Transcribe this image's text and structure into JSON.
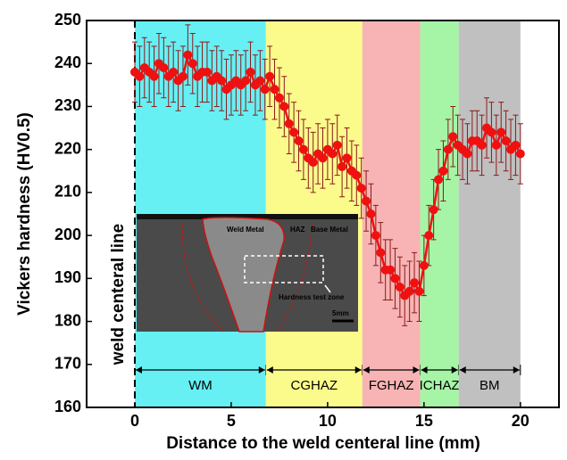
{
  "chart_data": {
    "type": "errorbar-line",
    "y_label": "Vickers hardness (HV0.5)",
    "x_label": "Distance to the weld centeral line (mm)",
    "xlim": [
      -2.5,
      22
    ],
    "xticks": [
      0,
      5,
      10,
      15,
      20
    ],
    "ylim": [
      160,
      250
    ],
    "yticks": [
      160,
      170,
      180,
      190,
      200,
      210,
      220,
      230,
      240,
      250
    ],
    "annotations": {
      "centerline": "weld centeral line",
      "weld_metal": "Weld Metal",
      "haz": "HAZ",
      "base_metal": "Base Metal",
      "test_zone": "Hardness test zone",
      "scale": "5mm"
    },
    "zones": [
      {
        "label": "WM",
        "start": 0,
        "end": 6.8,
        "color": "#66f0f4"
      },
      {
        "label": "CGHAZ",
        "start": 6.8,
        "end": 11.8,
        "color": "#fbfb8c"
      },
      {
        "label": "FGHAZ",
        "start": 11.8,
        "end": 14.8,
        "color": "#f8b4b4"
      },
      {
        "label": "ICHAZ",
        "start": 14.8,
        "end": 16.8,
        "color": "#a6f5a6"
      },
      {
        "label": "BM",
        "start": 16.8,
        "end": 20,
        "color": "#c0c0c0"
      }
    ],
    "series": [
      {
        "color": "#f01010",
        "error_color": "#8b1a1a",
        "x": [
          0,
          0.25,
          0.5,
          0.75,
          1,
          1.25,
          1.5,
          1.75,
          2,
          2.25,
          2.5,
          2.75,
          3,
          3.25,
          3.5,
          3.75,
          4,
          4.25,
          4.5,
          4.75,
          5,
          5.25,
          5.5,
          5.75,
          6,
          6.25,
          6.5,
          6.75,
          7,
          7.25,
          7.5,
          7.75,
          8,
          8.25,
          8.5,
          8.75,
          9,
          9.25,
          9.5,
          9.75,
          10,
          10.25,
          10.5,
          10.75,
          11,
          11.25,
          11.5,
          11.75,
          12,
          12.25,
          12.5,
          12.75,
          13,
          13.25,
          13.5,
          13.75,
          14,
          14.25,
          14.5,
          14.75,
          15,
          15.25,
          15.5,
          15.75,
          16,
          16.25,
          16.5,
          16.75,
          17,
          17.25,
          17.5,
          17.75,
          18,
          18.25,
          18.5,
          18.75,
          19,
          19.25,
          19.5,
          19.75,
          20
        ],
        "values": [
          238,
          237,
          239,
          238,
          237,
          240,
          239,
          237,
          238,
          236,
          237,
          242,
          240,
          237,
          238,
          238,
          236,
          237,
          236,
          234,
          235,
          236,
          235,
          236,
          238,
          235,
          236,
          234,
          237,
          234,
          232,
          230,
          226,
          224,
          222,
          220,
          218,
          217,
          219,
          218,
          220,
          219,
          221,
          216,
          218,
          215,
          214,
          211,
          208,
          205,
          200,
          196,
          192,
          192,
          190,
          188,
          186,
          187,
          189,
          187,
          193,
          200,
          206,
          213,
          215,
          220,
          223,
          221,
          220,
          219,
          222,
          222,
          221,
          225,
          224,
          221,
          224,
          222,
          220,
          221,
          219
        ],
        "errors": [
          7,
          7,
          7,
          7,
          7,
          7,
          7,
          7,
          7,
          7,
          7,
          7,
          7,
          7,
          7,
          7,
          7,
          7,
          7,
          7,
          7,
          7,
          7,
          7,
          7,
          7,
          7,
          7,
          7,
          7,
          7,
          7,
          7,
          7,
          7,
          7,
          7,
          7,
          7,
          7,
          7,
          7,
          7,
          7,
          7,
          7,
          7,
          7,
          7,
          7,
          7,
          7,
          7,
          7,
          7,
          7,
          7,
          7,
          7,
          7,
          7,
          7,
          7,
          7,
          7,
          7,
          7,
          7,
          7,
          7,
          7,
          7,
          7,
          7,
          7,
          7,
          7,
          7,
          7,
          7,
          7
        ]
      }
    ]
  }
}
